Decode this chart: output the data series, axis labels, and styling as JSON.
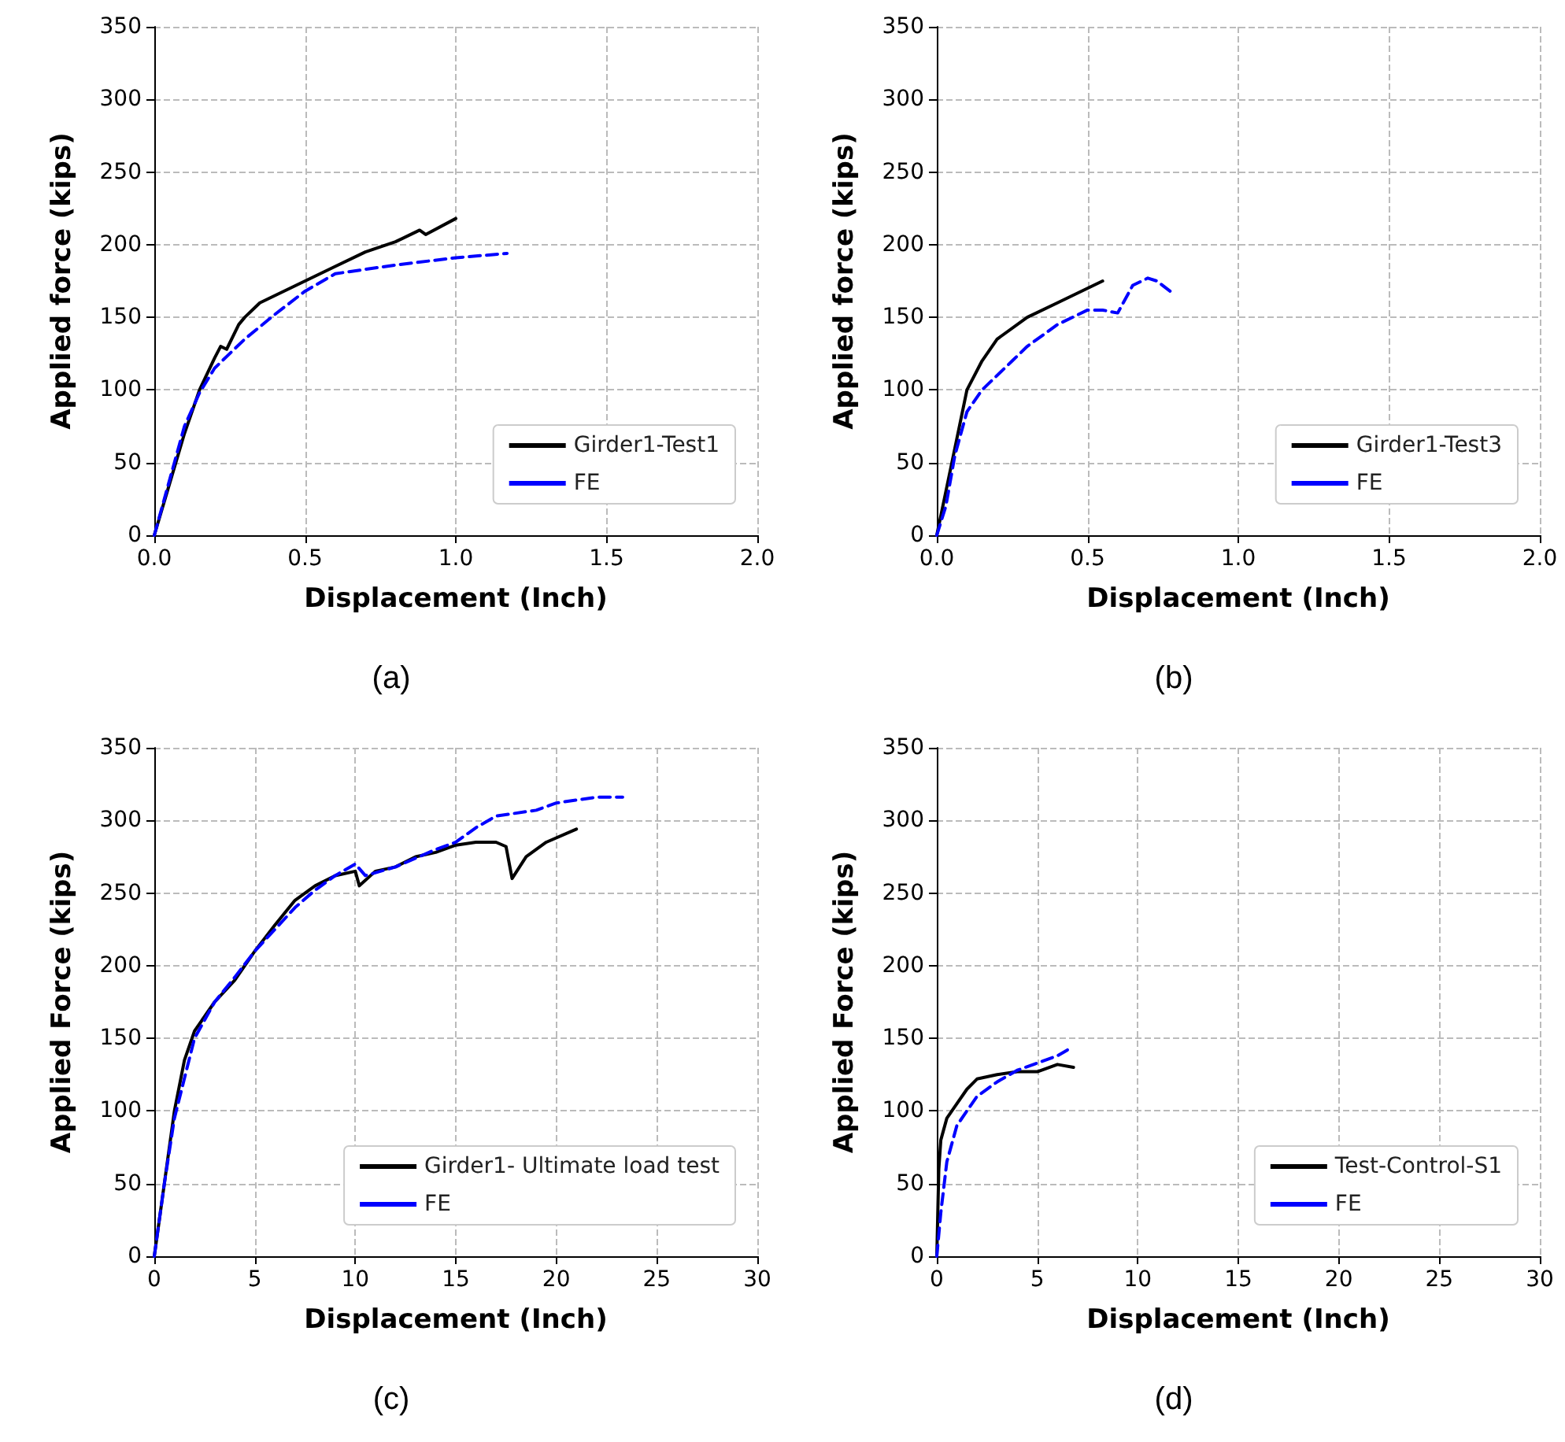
{
  "chart_data": [
    {
      "type": "line",
      "xlabel": "Displacement (Inch)",
      "ylabel": "Applied force (kips)",
      "annotations": [
        "(a)"
      ],
      "xlim": [
        0,
        2
      ],
      "ylim": [
        0,
        350
      ],
      "xticks": [
        {
          "value": 0,
          "label": "0.0"
        },
        {
          "value": 0.5,
          "label": "0.5"
        },
        {
          "value": 1,
          "label": "1.0"
        },
        {
          "value": 1.5,
          "label": "1.5"
        },
        {
          "value": 2,
          "label": "2.0"
        }
      ],
      "yticks": [
        0,
        50,
        100,
        150,
        200,
        250,
        300,
        350
      ],
      "grid": true,
      "legend": "bottom right",
      "marker": "none",
      "series": [
        {
          "name": "Girder1-Test1",
          "color": "#000000",
          "line_style": "solid",
          "x": [
            0,
            0.05,
            0.1,
            0.15,
            0.2,
            0.22,
            0.24,
            0.28,
            0.3,
            0.35,
            0.4,
            0.5,
            0.6,
            0.7,
            0.8,
            0.88,
            0.9,
            1.0
          ],
          "values": [
            0,
            35,
            70,
            100,
            122,
            130,
            128,
            145,
            150,
            160,
            165,
            175,
            185,
            195,
            202,
            210,
            207,
            218
          ]
        },
        {
          "name": "FE",
          "color": "#0000ff",
          "line_style": "dashed",
          "x": [
            0,
            0.1,
            0.15,
            0.2,
            0.3,
            0.4,
            0.5,
            0.6,
            0.8,
            1.0,
            1.17
          ],
          "values": [
            0,
            75,
            98,
            115,
            135,
            152,
            168,
            180,
            186,
            191,
            194
          ]
        }
      ]
    },
    {
      "type": "line",
      "xlabel": "Displacement (Inch)",
      "ylabel": "Applied force (kips)",
      "annotations": [
        "(b)"
      ],
      "xlim": [
        0,
        2
      ],
      "ylim": [
        0,
        350
      ],
      "xticks": [
        {
          "value": 0,
          "label": "0.0"
        },
        {
          "value": 0.5,
          "label": "0.5"
        },
        {
          "value": 1,
          "label": "1.0"
        },
        {
          "value": 1.5,
          "label": "1.5"
        },
        {
          "value": 2,
          "label": "2.0"
        }
      ],
      "yticks": [
        0,
        50,
        100,
        150,
        200,
        250,
        300,
        350
      ],
      "grid": true,
      "legend": "bottom right",
      "marker": "none",
      "series": [
        {
          "name": "Girder1-Test3",
          "color": "#000000",
          "line_style": "solid",
          "x": [
            0,
            0.03,
            0.07,
            0.1,
            0.15,
            0.2,
            0.3,
            0.4,
            0.5,
            0.55
          ],
          "values": [
            0,
            30,
            70,
            100,
            120,
            135,
            150,
            160,
            170,
            175
          ]
        },
        {
          "name": "FE",
          "color": "#0000ff",
          "line_style": "dashed",
          "x": [
            0,
            0.03,
            0.06,
            0.1,
            0.15,
            0.25,
            0.3,
            0.4,
            0.5,
            0.55,
            0.6,
            0.65,
            0.7,
            0.73,
            0.78
          ],
          "values": [
            0,
            20,
            55,
            85,
            100,
            120,
            130,
            145,
            155,
            155,
            153,
            172,
            177,
            175,
            167
          ]
        }
      ]
    },
    {
      "type": "line",
      "xlabel": "Displacement (Inch)",
      "ylabel": "Applied Force (kips)",
      "annotations": [
        "(c)"
      ],
      "xlim": [
        0,
        30
      ],
      "ylim": [
        0,
        350
      ],
      "xticks": [
        0,
        5,
        10,
        15,
        20,
        25,
        30
      ],
      "yticks": [
        0,
        50,
        100,
        150,
        200,
        250,
        300,
        350
      ],
      "grid": true,
      "legend": "bottom right",
      "marker": "none",
      "series": [
        {
          "name": "Girder1- Ultimate load test",
          "color": "#000000",
          "line_style": "solid",
          "x": [
            0,
            0.3,
            0.7,
            1,
            1.5,
            2,
            3,
            4,
            5,
            6,
            7,
            8,
            9,
            10,
            10.2,
            11,
            12,
            13,
            14,
            15,
            16,
            17,
            17.5,
            17.8,
            18.5,
            19.5,
            21
          ],
          "values": [
            0,
            30,
            70,
            100,
            135,
            155,
            175,
            190,
            210,
            228,
            245,
            255,
            262,
            265,
            255,
            265,
            268,
            275,
            278,
            283,
            285,
            285,
            282,
            260,
            275,
            285,
            294
          ]
        },
        {
          "name": "FE",
          "color": "#0000ff",
          "line_style": "dashed",
          "x": [
            0,
            0.5,
            1,
            2,
            3,
            4,
            5,
            7,
            8,
            9,
            10,
            10.5,
            12,
            14,
            15,
            16,
            17,
            19,
            20,
            22,
            23.3
          ],
          "values": [
            0,
            50,
            95,
            150,
            175,
            192,
            210,
            240,
            252,
            262,
            270,
            262,
            268,
            280,
            285,
            295,
            303,
            307,
            312,
            316,
            316
          ]
        }
      ]
    },
    {
      "type": "line",
      "xlabel": "Displacement (Inch)",
      "ylabel": "Applied Force (kips)",
      "annotations": [
        "(d)"
      ],
      "xlim": [
        0,
        30
      ],
      "ylim": [
        0,
        350
      ],
      "xticks": [
        0,
        5,
        10,
        15,
        20,
        25,
        30
      ],
      "yticks": [
        0,
        50,
        100,
        150,
        200,
        250,
        300,
        350
      ],
      "grid": true,
      "legend": "bottom right",
      "marker": "none",
      "series": [
        {
          "name": "Test-Control-S1",
          "color": "#000000",
          "line_style": "solid",
          "x": [
            0,
            0.1,
            0.2,
            0.5,
            1,
            1.5,
            2,
            3,
            4,
            5,
            6,
            6.8
          ],
          "values": [
            0,
            60,
            80,
            95,
            105,
            115,
            122,
            125,
            127,
            127,
            132,
            130
          ]
        },
        {
          "name": "FE",
          "color": "#0000ff",
          "line_style": "dashed",
          "x": [
            0,
            0.2,
            0.5,
            1,
            1.5,
            2,
            3,
            4,
            5,
            6,
            6.5
          ],
          "values": [
            0,
            30,
            65,
            90,
            100,
            110,
            120,
            128,
            133,
            138,
            142
          ]
        }
      ]
    }
  ]
}
